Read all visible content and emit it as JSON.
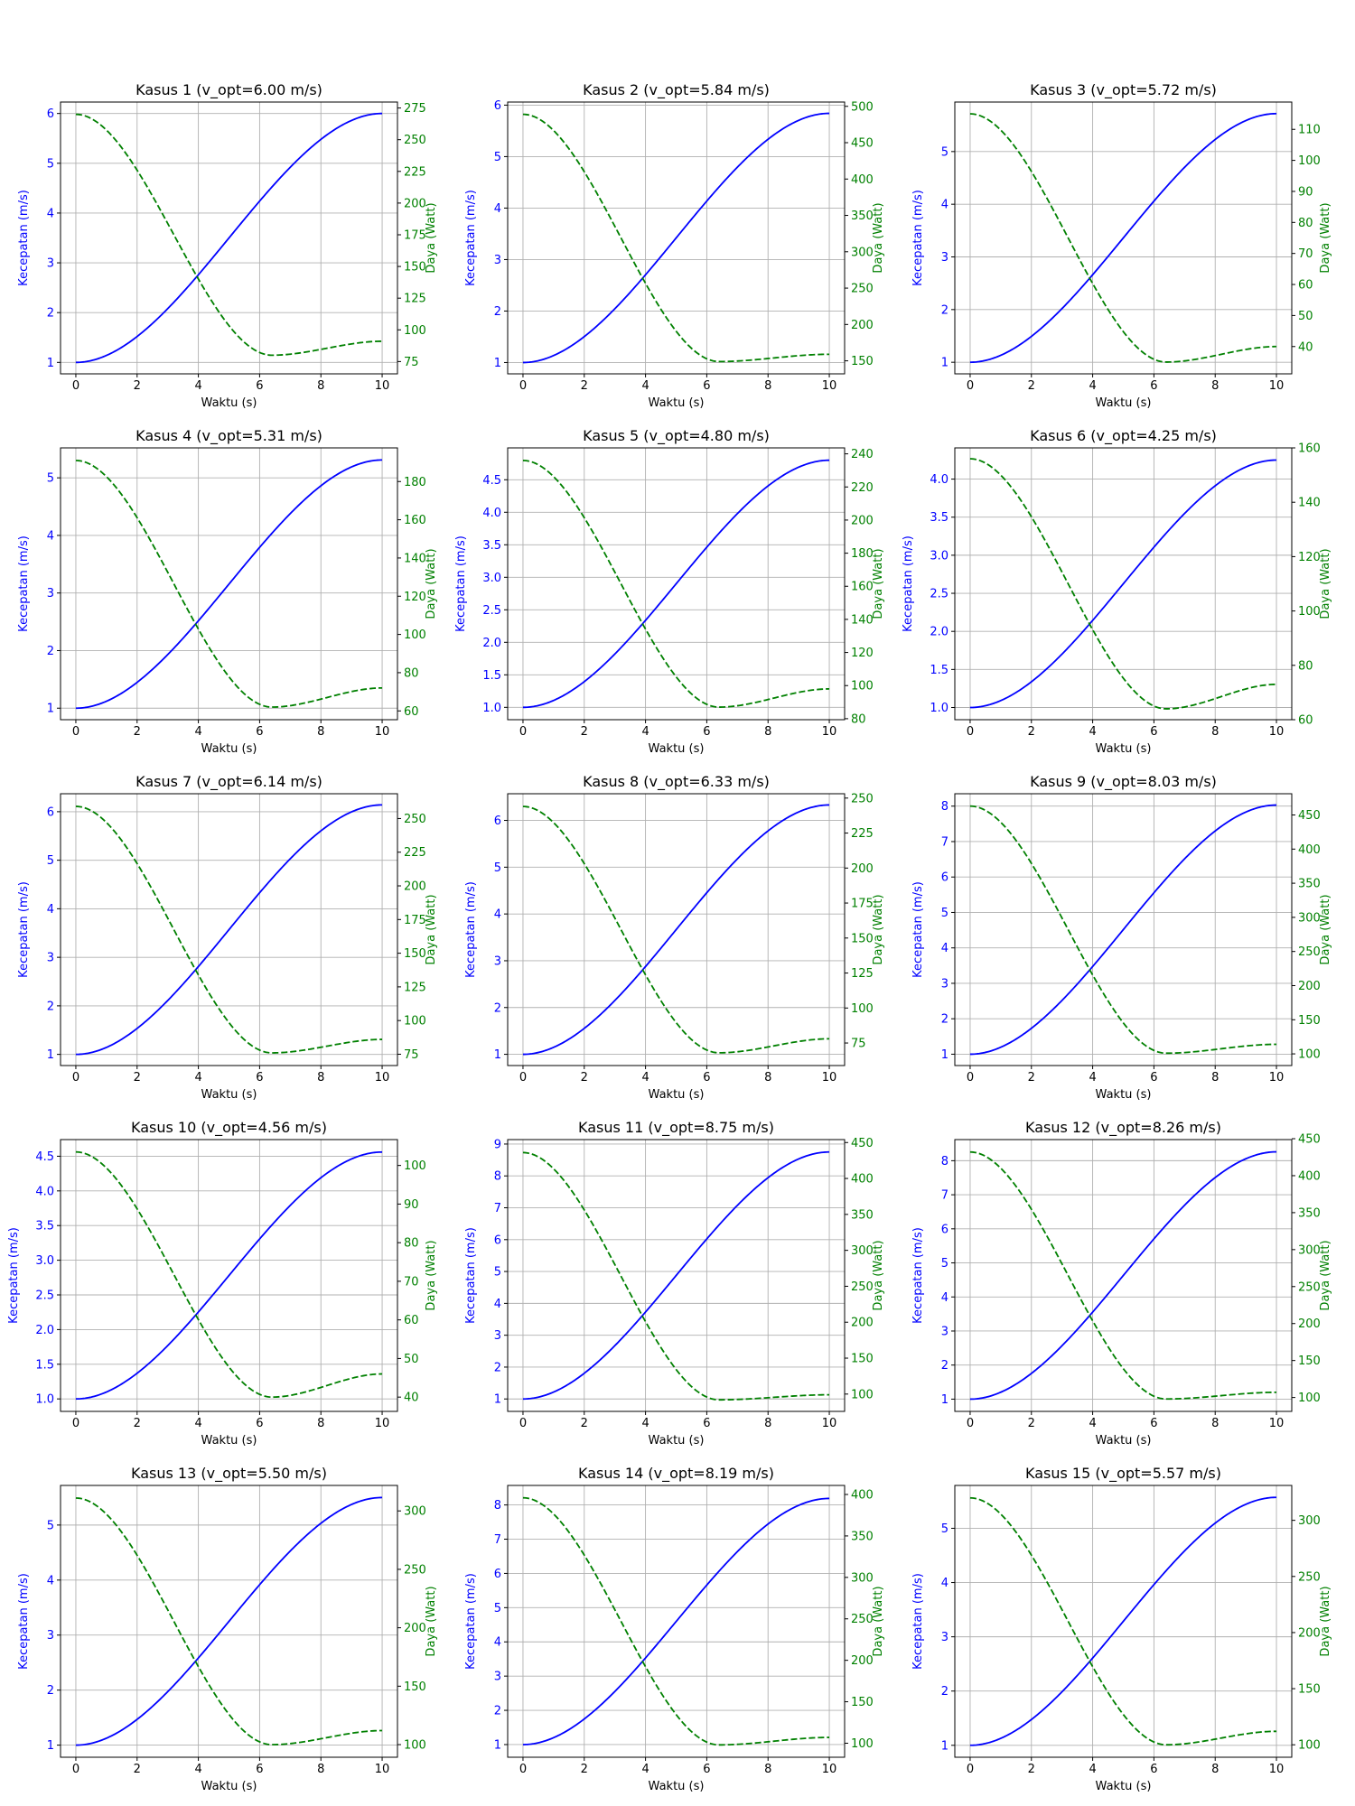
{
  "figure": {
    "rows": 5,
    "cols": 3,
    "xlabel": "Waktu (s)",
    "ylabel_left": "Kecepatan (m/s)",
    "ylabel_right": "Daya (Watt)",
    "colors": {
      "speed": "#0000ff",
      "power": "#008000",
      "grid": "#b0b0b0",
      "axes": "#000000"
    }
  },
  "chart_data": [
    {
      "type": "line",
      "title": "Kasus 1 (v_opt=6.00 m/s)",
      "xlabel": "Waktu (s)",
      "ylabel": "Kecepatan (m/s)",
      "ylabel_right": "Daya (Watt)",
      "xlim": [
        0,
        10
      ],
      "xticks": [
        0,
        2,
        4,
        6,
        8,
        10
      ],
      "ylim": [
        0.77,
        6.23
      ],
      "yticks": [
        1,
        2,
        3,
        4,
        5,
        6
      ],
      "ytick_labels": [
        "1",
        "2",
        "3",
        "4",
        "5",
        "6"
      ],
      "ylim_right": [
        65.3,
        279.7
      ],
      "yticks_right": [
        75,
        100,
        125,
        150,
        175,
        200,
        225,
        250,
        275
      ],
      "grid": true,
      "series": [
        {
          "axis": "left",
          "style": "solid",
          "color": "#0000ff",
          "v0": 1,
          "v1": 6.0
        },
        {
          "axis": "right",
          "style": "dashed",
          "color": "#008000",
          "p0": 270,
          "pmin": 80,
          "pend": 91
        }
      ]
    },
    {
      "type": "line",
      "title": "Kasus 2 (v_opt=5.84 m/s)",
      "xlabel": "Waktu (s)",
      "ylabel": "Kecepatan (m/s)",
      "ylabel_right": "Daya (Watt)",
      "xlim": [
        0,
        10
      ],
      "xticks": [
        0,
        2,
        4,
        6,
        8,
        10
      ],
      "ylim": [
        0.78,
        6.06
      ],
      "yticks": [
        1,
        2,
        3,
        4,
        5,
        6
      ],
      "ytick_labels": [
        "1",
        "2",
        "3",
        "4",
        "5",
        "6"
      ],
      "ylim_right": [
        132.1,
        505.9
      ],
      "yticks_right": [
        150,
        200,
        250,
        300,
        350,
        400,
        450,
        500
      ],
      "grid": true,
      "series": [
        {
          "axis": "left",
          "style": "solid",
          "color": "#0000ff",
          "v0": 1,
          "v1": 5.84
        },
        {
          "axis": "right",
          "style": "dashed",
          "color": "#008000",
          "p0": 489,
          "pmin": 149,
          "pend": 159
        }
      ]
    },
    {
      "type": "line",
      "title": "Kasus 3 (v_opt=5.72 m/s)",
      "xlabel": "Waktu (s)",
      "ylabel": "Kecepatan (m/s)",
      "ylabel_right": "Daya (Watt)",
      "xlim": [
        0,
        10
      ],
      "xticks": [
        0,
        2,
        4,
        6,
        8,
        10
      ],
      "ylim": [
        0.78,
        5.94
      ],
      "yticks": [
        1,
        2,
        3,
        4,
        5
      ],
      "ytick_labels": [
        "1",
        "2",
        "3",
        "4",
        "5"
      ],
      "ylim_right": [
        31.2,
        118.8
      ],
      "yticks_right": [
        40,
        50,
        60,
        70,
        80,
        90,
        100,
        110
      ],
      "grid": true,
      "series": [
        {
          "axis": "left",
          "style": "solid",
          "color": "#0000ff",
          "v0": 1,
          "v1": 5.72
        },
        {
          "axis": "right",
          "style": "dashed",
          "color": "#008000",
          "p0": 115,
          "pmin": 35,
          "pend": 40
        }
      ]
    },
    {
      "type": "line",
      "title": "Kasus 4 (v_opt=5.31 m/s)",
      "xlabel": "Waktu (s)",
      "ylabel": "Kecepatan (m/s)",
      "ylabel_right": "Daya (Watt)",
      "xlim": [
        0,
        10
      ],
      "xticks": [
        0,
        2,
        4,
        6,
        8,
        10
      ],
      "ylim": [
        0.8,
        5.52
      ],
      "yticks": [
        1,
        2,
        3,
        4,
        5
      ],
      "ytick_labels": [
        "1",
        "2",
        "3",
        "4",
        "5"
      ],
      "ylim_right": [
        55.4,
        197.6
      ],
      "yticks_right": [
        60,
        80,
        100,
        120,
        140,
        160,
        180
      ],
      "grid": true,
      "series": [
        {
          "axis": "left",
          "style": "solid",
          "color": "#0000ff",
          "v0": 1,
          "v1": 5.31
        },
        {
          "axis": "right",
          "style": "dashed",
          "color": "#008000",
          "p0": 191,
          "pmin": 62,
          "pend": 72
        }
      ]
    },
    {
      "type": "line",
      "title": "Kasus 5 (v_opt=4.80 m/s)",
      "xlabel": "Waktu (s)",
      "ylabel": "Kecepatan (m/s)",
      "ylabel_right": "Daya (Watt)",
      "xlim": [
        0,
        10
      ],
      "xticks": [
        0,
        2,
        4,
        6,
        8,
        10
      ],
      "ylim": [
        0.81,
        4.99
      ],
      "yticks": [
        1.0,
        1.5,
        2.0,
        2.5,
        3.0,
        3.5,
        4.0,
        4.5
      ],
      "ytick_labels": [
        "1.0",
        "1.5",
        "2.0",
        "2.5",
        "3.0",
        "3.5",
        "4.0",
        "4.5"
      ],
      "ylim_right": [
        79.4,
        243.6
      ],
      "yticks_right": [
        80,
        100,
        120,
        140,
        160,
        180,
        200,
        220,
        240
      ],
      "grid": true,
      "series": [
        {
          "axis": "left",
          "style": "solid",
          "color": "#0000ff",
          "v0": 1,
          "v1": 4.8
        },
        {
          "axis": "right",
          "style": "dashed",
          "color": "#008000",
          "p0": 236,
          "pmin": 87,
          "pend": 98
        }
      ]
    },
    {
      "type": "line",
      "title": "Kasus 6 (v_opt=4.25 m/s)",
      "xlabel": "Waktu (s)",
      "ylabel": "Kecepatan (m/s)",
      "ylabel_right": "Daya (Watt)",
      "xlim": [
        0,
        10
      ],
      "xticks": [
        0,
        2,
        4,
        6,
        8,
        10
      ],
      "ylim": [
        0.84,
        4.41
      ],
      "yticks": [
        1.0,
        1.5,
        2.0,
        2.5,
        3.0,
        3.5,
        4.0
      ],
      "ytick_labels": [
        "1.0",
        "1.5",
        "2.0",
        "2.5",
        "3.0",
        "3.5",
        "4.0"
      ],
      "ylim_right": [
        60.0,
        160.0
      ],
      "yticks_right": [
        60,
        80,
        100,
        120,
        140,
        160
      ],
      "grid": true,
      "series": [
        {
          "axis": "left",
          "style": "solid",
          "color": "#0000ff",
          "v0": 1,
          "v1": 4.25
        },
        {
          "axis": "right",
          "style": "dashed",
          "color": "#008000",
          "p0": 156,
          "pmin": 64,
          "pend": 73
        }
      ]
    },
    {
      "type": "line",
      "title": "Kasus 7 (v_opt=6.14 m/s)",
      "xlabel": "Waktu (s)",
      "ylabel": "Kecepatan (m/s)",
      "ylabel_right": "Daya (Watt)",
      "xlim": [
        0,
        10
      ],
      "xticks": [
        0,
        2,
        4,
        6,
        8,
        10
      ],
      "ylim": [
        0.77,
        6.37
      ],
      "yticks": [
        1,
        2,
        3,
        4,
        5,
        6
      ],
      "ytick_labels": [
        "1",
        "2",
        "3",
        "4",
        "5",
        "6"
      ],
      "ylim_right": [
        66.6,
        268.4
      ],
      "yticks_right": [
        75,
        100,
        125,
        150,
        175,
        200,
        225,
        250
      ],
      "grid": true,
      "series": [
        {
          "axis": "left",
          "style": "solid",
          "color": "#0000ff",
          "v0": 1,
          "v1": 6.14
        },
        {
          "axis": "right",
          "style": "dashed",
          "color": "#008000",
          "p0": 259,
          "pmin": 76,
          "pend": 86
        }
      ]
    },
    {
      "type": "line",
      "title": "Kasus 8 (v_opt=6.33 m/s)",
      "xlabel": "Waktu (s)",
      "ylabel": "Kecepatan (m/s)",
      "ylabel_right": "Daya (Watt)",
      "xlim": [
        0,
        10
      ],
      "xticks": [
        0,
        2,
        4,
        6,
        8,
        10
      ],
      "ylim": [
        0.76,
        6.57
      ],
      "yticks": [
        1,
        2,
        3,
        4,
        5,
        6
      ],
      "ytick_labels": [
        "1",
        "2",
        "3",
        "4",
        "5",
        "6"
      ],
      "ylim_right": [
        58.9,
        253.1
      ],
      "yticks_right": [
        75,
        100,
        125,
        150,
        175,
        200,
        225,
        250
      ],
      "grid": true,
      "series": [
        {
          "axis": "left",
          "style": "solid",
          "color": "#0000ff",
          "v0": 1,
          "v1": 6.33
        },
        {
          "axis": "right",
          "style": "dashed",
          "color": "#008000",
          "p0": 244,
          "pmin": 68,
          "pend": 78
        }
      ]
    },
    {
      "type": "line",
      "title": "Kasus 9 (v_opt=8.03 m/s)",
      "xlabel": "Waktu (s)",
      "ylabel": "Kecepatan (m/s)",
      "ylabel_right": "Daya (Watt)",
      "xlim": [
        0,
        10
      ],
      "xticks": [
        0,
        2,
        4,
        6,
        8,
        10
      ],
      "ylim": [
        0.68,
        8.35
      ],
      "yticks": [
        1,
        2,
        3,
        4,
        5,
        6,
        7,
        8
      ],
      "ytick_labels": [
        "1",
        "2",
        "3",
        "4",
        "5",
        "6",
        "7",
        "8"
      ],
      "ylim_right": [
        82.9,
        481.1
      ],
      "yticks_right": [
        100,
        150,
        200,
        250,
        300,
        350,
        400,
        450
      ],
      "grid": true,
      "series": [
        {
          "axis": "left",
          "style": "solid",
          "color": "#0000ff",
          "v0": 1,
          "v1": 8.03
        },
        {
          "axis": "right",
          "style": "dashed",
          "color": "#008000",
          "p0": 463,
          "pmin": 101,
          "pend": 114
        }
      ]
    },
    {
      "type": "line",
      "title": "Kasus 10 (v_opt=4.56 m/s)",
      "xlabel": "Waktu (s)",
      "ylabel": "Kecepatan (m/s)",
      "ylabel_right": "Daya (Watt)",
      "xlim": [
        0,
        10
      ],
      "xticks": [
        0,
        2,
        4,
        6,
        8,
        10
      ],
      "ylim": [
        0.82,
        4.74
      ],
      "yticks": [
        1.0,
        1.5,
        2.0,
        2.5,
        3.0,
        3.5,
        4.0,
        4.5
      ],
      "ytick_labels": [
        "1.0",
        "1.5",
        "2.0",
        "2.5",
        "3.0",
        "3.5",
        "4.0",
        "4.5"
      ],
      "ylim_right": [
        36.3,
        106.7
      ],
      "yticks_right": [
        40,
        50,
        60,
        70,
        80,
        90,
        100
      ],
      "grid": true,
      "series": [
        {
          "axis": "left",
          "style": "solid",
          "color": "#0000ff",
          "v0": 1,
          "v1": 4.56
        },
        {
          "axis": "right",
          "style": "dashed",
          "color": "#008000",
          "p0": 103.5,
          "pmin": 40,
          "pend": 46
        }
      ]
    },
    {
      "type": "line",
      "title": "Kasus 11 (v_opt=8.75 m/s)",
      "xlabel": "Waktu (s)",
      "ylabel": "Kecepatan (m/s)",
      "ylabel_right": "Daya (Watt)",
      "xlim": [
        0,
        10
      ],
      "xticks": [
        0,
        2,
        4,
        6,
        8,
        10
      ],
      "ylim": [
        0.61,
        9.14
      ],
      "yticks": [
        1,
        2,
        3,
        4,
        5,
        6,
        7,
        8,
        9
      ],
      "ytick_labels": [
        "1",
        "2",
        "3",
        "4",
        "5",
        "6",
        "7",
        "8",
        "9"
      ],
      "ylim_right": [
        75.9,
        454.1
      ],
      "yticks_right": [
        100,
        150,
        200,
        250,
        300,
        350,
        400,
        450
      ],
      "grid": true,
      "series": [
        {
          "axis": "left",
          "style": "solid",
          "color": "#0000ff",
          "v0": 1,
          "v1": 8.75
        },
        {
          "axis": "right",
          "style": "dashed",
          "color": "#008000",
          "p0": 436,
          "pmin": 92,
          "pend": 99
        }
      ]
    },
    {
      "type": "line",
      "title": "Kasus 12 (v_opt=8.26 m/s)",
      "xlabel": "Waktu (s)",
      "ylabel": "Kecepatan (m/s)",
      "ylabel_right": "Daya (Watt)",
      "xlim": [
        0,
        10
      ],
      "xticks": [
        0,
        2,
        4,
        6,
        8,
        10
      ],
      "ylim": [
        0.64,
        8.62
      ],
      "yticks": [
        1,
        2,
        3,
        4,
        5,
        6,
        7,
        8
      ],
      "ytick_labels": [
        "1",
        "2",
        "3",
        "4",
        "5",
        "6",
        "7",
        "8"
      ],
      "ylim_right": [
        81.2,
        448.8
      ],
      "yticks_right": [
        100,
        150,
        200,
        250,
        300,
        350,
        400,
        450
      ],
      "grid": true,
      "series": [
        {
          "axis": "left",
          "style": "solid",
          "color": "#0000ff",
          "v0": 1,
          "v1": 8.26
        },
        {
          "axis": "right",
          "style": "dashed",
          "color": "#008000",
          "p0": 432,
          "pmin": 98,
          "pend": 107
        }
      ]
    },
    {
      "type": "line",
      "title": "Kasus 13 (v_opt=5.50 m/s)",
      "xlabel": "Waktu (s)",
      "ylabel": "Kecepatan (m/s)",
      "ylabel_right": "Daya (Watt)",
      "xlim": [
        0,
        10
      ],
      "xticks": [
        0,
        2,
        4,
        6,
        8,
        10
      ],
      "ylim": [
        0.78,
        5.72
      ],
      "yticks": [
        1,
        2,
        3,
        4,
        5
      ],
      "ytick_labels": [
        "1",
        "2",
        "3",
        "4",
        "5"
      ],
      "ylim_right": [
        89.2,
        321.8
      ],
      "yticks_right": [
        100,
        150,
        200,
        250,
        300
      ],
      "grid": true,
      "series": [
        {
          "axis": "left",
          "style": "solid",
          "color": "#0000ff",
          "v0": 1,
          "v1": 5.5
        },
        {
          "axis": "right",
          "style": "dashed",
          "color": "#008000",
          "p0": 311,
          "pmin": 100,
          "pend": 112
        }
      ]
    },
    {
      "type": "line",
      "title": "Kasus 14 (v_opt=8.19 m/s)",
      "xlabel": "Waktu (s)",
      "ylabel": "Kecepatan (m/s)",
      "ylabel_right": "Daya (Watt)",
      "xlim": [
        0,
        10
      ],
      "xticks": [
        0,
        2,
        4,
        6,
        8,
        10
      ],
      "ylim": [
        0.63,
        8.57
      ],
      "yticks": [
        1,
        2,
        3,
        4,
        5,
        6,
        7,
        8
      ],
      "ytick_labels": [
        "1",
        "2",
        "3",
        "4",
        "5",
        "6",
        "7",
        "8"
      ],
      "ylim_right": [
        83.1,
        410.9
      ],
      "yticks_right": [
        100,
        150,
        200,
        250,
        300,
        350,
        400
      ],
      "grid": true,
      "series": [
        {
          "axis": "left",
          "style": "solid",
          "color": "#0000ff",
          "v0": 1,
          "v1": 8.19
        },
        {
          "axis": "right",
          "style": "dashed",
          "color": "#008000",
          "p0": 396,
          "pmin": 98,
          "pend": 107
        }
      ]
    },
    {
      "type": "line",
      "title": "Kasus 15 (v_opt=5.57 m/s)",
      "xlabel": "Waktu (s)",
      "ylabel": "Kecepatan (m/s)",
      "ylabel_right": "Daya (Watt)",
      "xlim": [
        0,
        10
      ],
      "xticks": [
        0,
        2,
        4,
        6,
        8,
        10
      ],
      "ylim": [
        0.78,
        5.79
      ],
      "yticks": [
        1,
        2,
        3,
        4,
        5
      ],
      "ytick_labels": [
        "1",
        "2",
        "3",
        "4",
        "5"
      ],
      "ylim_right": [
        88.9,
        331.1
      ],
      "yticks_right": [
        100,
        150,
        200,
        250,
        300
      ],
      "grid": true,
      "series": [
        {
          "axis": "left",
          "style": "solid",
          "color": "#0000ff",
          "v0": 1,
          "v1": 5.57
        },
        {
          "axis": "right",
          "style": "dashed",
          "color": "#008000",
          "p0": 320,
          "pmin": 100,
          "pend": 112
        }
      ]
    }
  ]
}
